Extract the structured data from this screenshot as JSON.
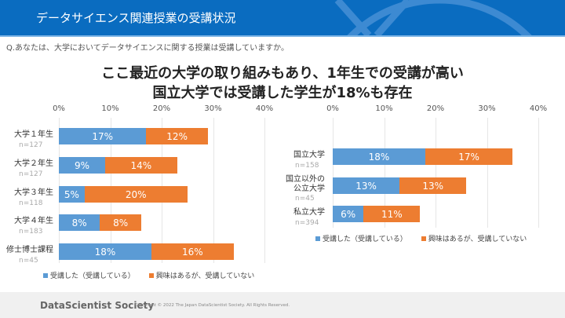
{
  "header": {
    "title": "データサイエンス関連授業の受講状況"
  },
  "question": "Q.あなたは、大学においてデータサイエンスに関する授業は受講していますか。",
  "headline": [
    "ここ最近の大学の取り組みもあり、1年生での受講が高い",
    "国立大学では受講した学生が18%も存在"
  ],
  "footer": {
    "brand": "DataScientist Society",
    "copyright": "Copyright © 2022 The Japan DataScientist Society. All Rights Reserved."
  },
  "colors": {
    "header": "#0a6cc0",
    "took": "#5b9bd5",
    "interested": "#ed7d31"
  },
  "chart_data": [
    {
      "type": "bar",
      "orientation": "horizontal",
      "stacked": true,
      "xlim": [
        0,
        40
      ],
      "ticks": [
        "0%",
        "10%",
        "20%",
        "30%",
        "40%"
      ],
      "grid": true,
      "legend": "bottom",
      "categories": [
        "大学１年生",
        "大学２年生",
        "大学３年生",
        "大学４年生",
        "修士博士課程"
      ],
      "n": [
        "n=127",
        "n=127",
        "n=118",
        "n=183",
        "n=45"
      ],
      "series": [
        {
          "name": "受講した（受講している）",
          "values": [
            17,
            9,
            5,
            8,
            18
          ]
        },
        {
          "name": "興味はあるが、受講していない",
          "values": [
            12,
            14,
            20,
            8,
            16
          ]
        }
      ]
    },
    {
      "type": "bar",
      "orientation": "horizontal",
      "stacked": true,
      "xlim": [
        0,
        40
      ],
      "ticks": [
        "0%",
        "10%",
        "20%",
        "30%",
        "40%"
      ],
      "grid": true,
      "legend": "bottom",
      "categories": [
        "国立大学",
        "国立以外の公立大学",
        "私立大学"
      ],
      "n": [
        "n=158",
        "n=45",
        "n=394"
      ],
      "series": [
        {
          "name": "受講した（受講している）",
          "values": [
            18,
            13,
            6
          ]
        },
        {
          "name": "興味はあるが、受講していない",
          "values": [
            17,
            13,
            11
          ]
        }
      ]
    }
  ]
}
